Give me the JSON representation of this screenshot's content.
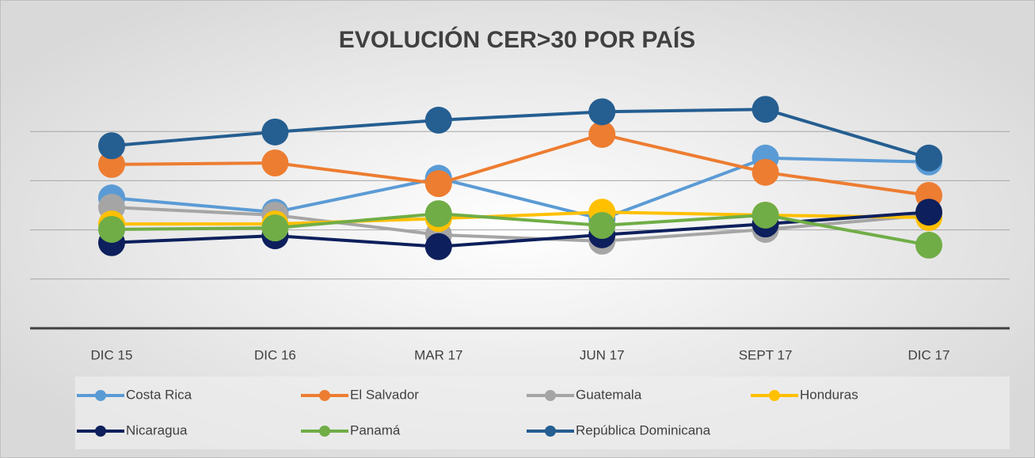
{
  "chart_data": {
    "type": "line",
    "title": "EVOLUCIÓN CER>30 POR PAÍS",
    "categories": [
      "DIC 15",
      "DIC 16",
      "MAR 17",
      "JUN 17",
      "SEPT 17",
      "DIC 17"
    ],
    "ylim": [
      0,
      5
    ],
    "yticks": [
      0,
      1,
      2,
      3,
      4
    ],
    "grid": true,
    "series": [
      {
        "name": "Costa Rica",
        "color": "#5b9bd5",
        "values": [
          2.65,
          2.36,
          3.05,
          2.22,
          3.46,
          3.38
        ]
      },
      {
        "name": "El Salvador",
        "color": "#ed7d31",
        "values": [
          3.33,
          3.36,
          2.94,
          3.94,
          3.17,
          2.7
        ]
      },
      {
        "name": "Guatemala",
        "color": "#a5a5a5",
        "values": [
          2.46,
          2.3,
          1.9,
          1.77,
          2.01,
          2.3
        ]
      },
      {
        "name": "Honduras",
        "color": "#ffc000",
        "values": [
          2.12,
          2.12,
          2.23,
          2.36,
          2.3,
          2.25
        ]
      },
      {
        "name": "Nicaragua",
        "color": "#0d1f5c",
        "values": [
          1.74,
          1.88,
          1.66,
          1.9,
          2.12,
          2.36
        ]
      },
      {
        "name": "Panamá",
        "color": "#70ad47",
        "values": [
          2.01,
          2.04,
          2.33,
          2.09,
          2.3,
          1.69
        ]
      },
      {
        "name": "República Dominicana",
        "color": "#255e91",
        "values": [
          3.71,
          3.99,
          4.23,
          4.4,
          4.45,
          3.46
        ]
      }
    ]
  }
}
